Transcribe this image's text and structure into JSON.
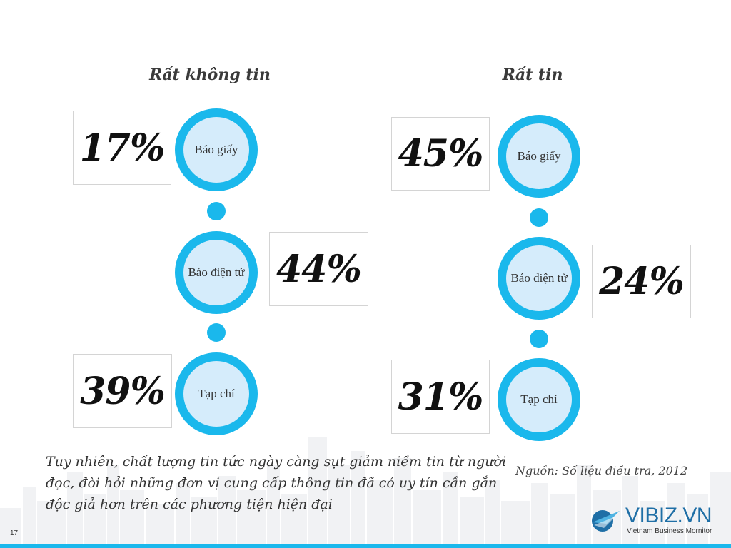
{
  "left": {
    "title": "Rất không tin",
    "items": [
      {
        "label": "Báo giấy",
        "percent": "17%"
      },
      {
        "label": "Báo điện tử",
        "percent": "44%"
      },
      {
        "label": "Tạp chí",
        "percent": "39%"
      }
    ]
  },
  "right": {
    "title": "Rất tin",
    "items": [
      {
        "label": "Báo giấy",
        "percent": "45%"
      },
      {
        "label": "Báo điện tử",
        "percent": "24%"
      },
      {
        "label": "Tạp chí",
        "percent": "31%"
      }
    ]
  },
  "note": "Tuy nhiên, chất lượng tin tức ngày càng sụt giảm niềm tin từ người đọc, đòi hỏi những đơn vị cung cấp thông tin đã có uy tín cần gắn độc giả hơn trên các  phương tiện hiện đại",
  "source": "Nguồn: Số liệu điều tra, 2012",
  "page_number": "17",
  "logo": {
    "name": "VIBIZ.VN",
    "tagline": "Vietnam Business Mornitor"
  },
  "colors": {
    "accent": "#1ab8ec",
    "circle_inner": "#d5ecfb",
    "logo": "#1f6fa6"
  }
}
